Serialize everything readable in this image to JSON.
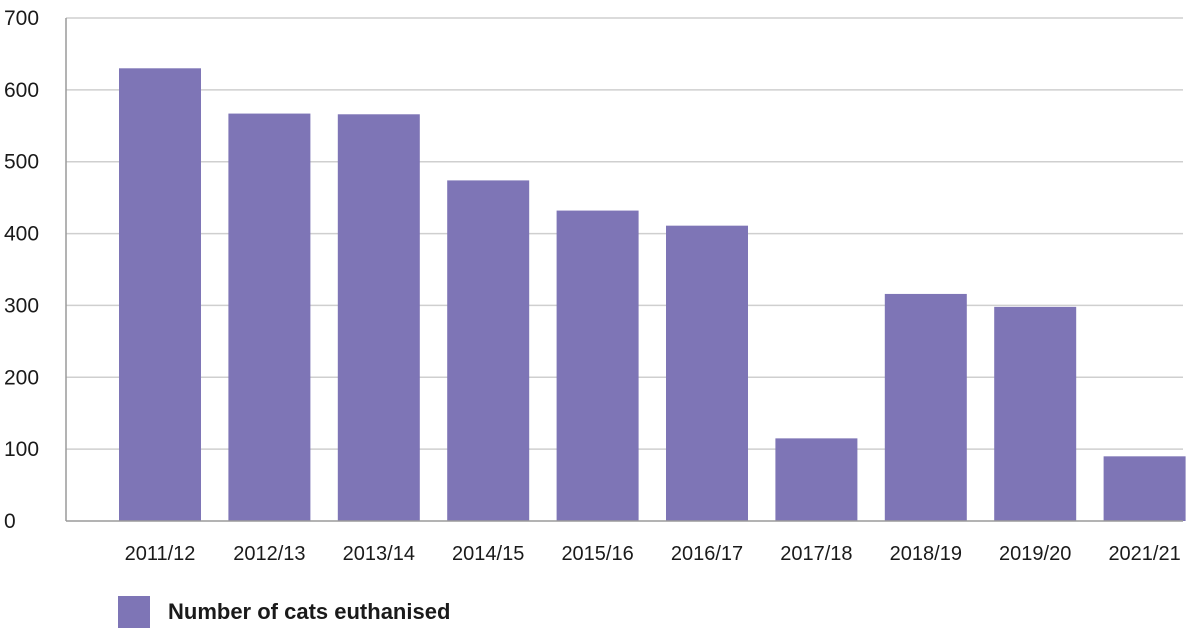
{
  "chart_data": {
    "type": "bar",
    "categories": [
      "2011/12",
      "2012/13",
      "2013/14",
      "2014/15",
      "2015/16",
      "2016/17",
      "2017/18",
      "2018/19",
      "2019/20",
      "2021/21"
    ],
    "series": [
      {
        "name": "Number of cats euthanised",
        "values": [
          630,
          567,
          566,
          474,
          432,
          411,
          115,
          316,
          298,
          90
        ]
      }
    ],
    "ylim": [
      0,
      700
    ],
    "yticks": [
      0,
      100,
      200,
      300,
      400,
      500,
      600,
      700
    ],
    "grid": true,
    "legend_position": "bottom-left"
  },
  "colors": {
    "bar": "#7e75b6",
    "grid": "#cfcfcf",
    "axis": "#9a9a9a"
  }
}
